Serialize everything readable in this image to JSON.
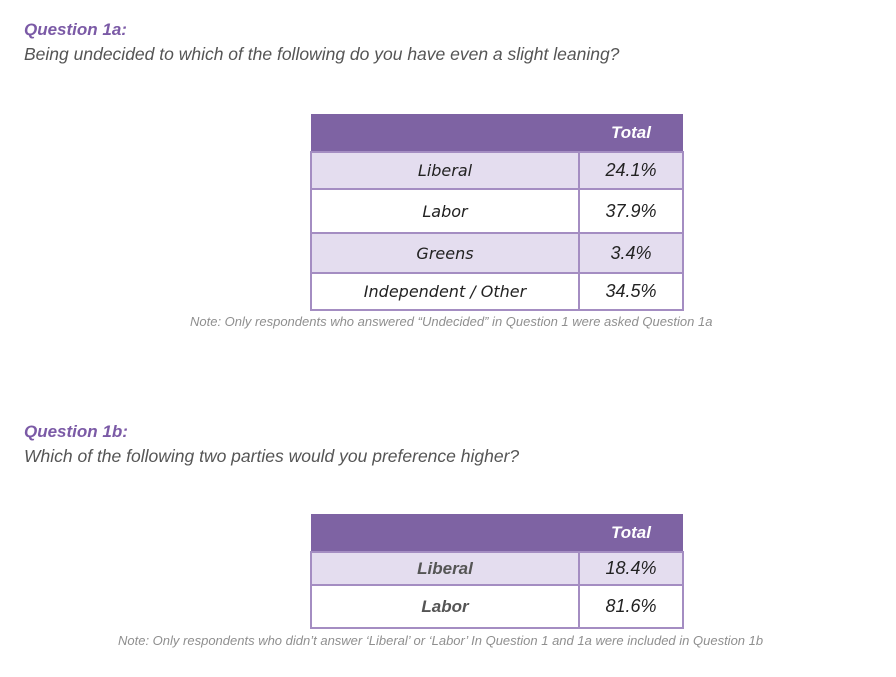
{
  "q1a": {
    "heading": "Question 1a:",
    "question": "Being undecided to which of the following do you have even a slight leaning?",
    "column_header": "Total",
    "rows": [
      {
        "label": "Liberal",
        "value": "24.1%"
      },
      {
        "label": "Labor",
        "value": "37.9%"
      },
      {
        "label": "Greens",
        "value": "3.4%"
      },
      {
        "label": "Independent / Other",
        "value": "34.5%"
      }
    ],
    "note": "Note: Only respondents who answered “Undecided” in Question 1 were asked Question 1a"
  },
  "q1b": {
    "heading": "Question 1b:",
    "question": "Which of the following two parties would you preference higher?",
    "column_header": "Total",
    "rows": [
      {
        "label": "Liberal",
        "value": "18.4%"
      },
      {
        "label": "Labor",
        "value": "81.6%"
      }
    ],
    "note": "Note: Only respondents who didn’t answer ‘Liberal’ or ‘Labor’ In Question 1 and 1a were included in Question 1b"
  },
  "colors": {
    "accent": "#7b5aa6",
    "header_fill": "#7e63a3",
    "row_shade": "#e4ddef",
    "border": "#a48dc2"
  }
}
